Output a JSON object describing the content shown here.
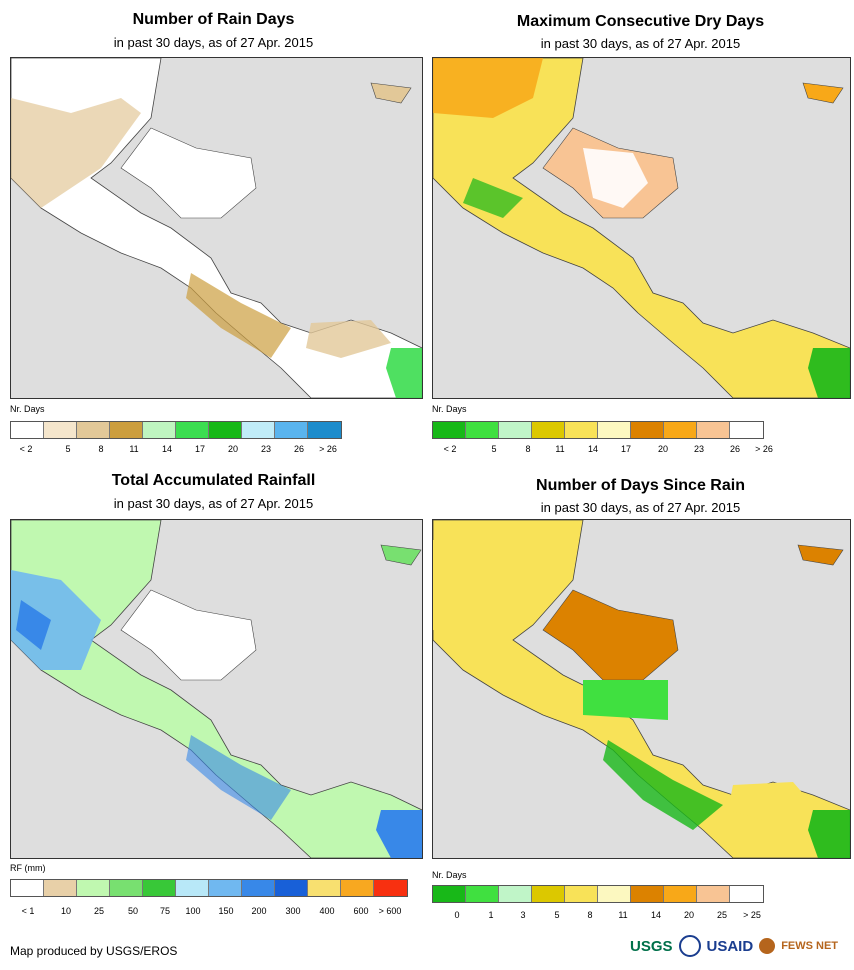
{
  "panels": [
    {
      "title": "Number of Rain Days",
      "subtitle": "in past 30 days, as of 27 Apr. 2015",
      "unit": "Nr. Days",
      "colors": [
        "#ffffff",
        "#f5e6cc",
        "#e2c898",
        "#cc9e3e",
        "#bff5c0",
        "#3cdd50",
        "#18b818",
        "#c0ecf8",
        "#5ab4ee",
        "#1c8ccc"
      ],
      "labels": [
        "< 2",
        "5",
        "8",
        "11",
        "14",
        "17",
        "20",
        "23",
        "26",
        "> 26"
      ]
    },
    {
      "title": "Maximum Consecutive Dry Days",
      "subtitle": "in past 30 days, as of 27 Apr. 2015",
      "unit": "Nr. Days",
      "colors": [
        "#18b818",
        "#40e040",
        "#c0f5c8",
        "#dcc800",
        "#f8e258",
        "#fcf8c0",
        "#dc8200",
        "#f8a818",
        "#f8c494",
        "#ffffff"
      ],
      "labels": [
        "< 2",
        "5",
        "8",
        "11",
        "14",
        "17",
        "20",
        "23",
        "26",
        "> 26"
      ]
    },
    {
      "title": "Total Accumulated Rainfall",
      "subtitle": "in past 30 days, as of 27 Apr. 2015",
      "unit": "RF (mm)",
      "colors": [
        "#ffffff",
        "#e8d0a8",
        "#c0f8b0",
        "#78e070",
        "#38c838",
        "#b8e8f8",
        "#70b8f0",
        "#3888e8",
        "#1860d8",
        "#f8e070",
        "#f8a820",
        "#f83010"
      ],
      "labels": [
        "< 1",
        "10",
        "25",
        "50",
        "75",
        "100",
        "150",
        "200",
        "300",
        "400",
        "600",
        "> 600"
      ]
    },
    {
      "title": "Number of Days Since Rain",
      "subtitle": "in past 30 days, as of 27 Apr. 2015",
      "unit": "Nr. Days",
      "colors": [
        "#18b818",
        "#40e040",
        "#c0f5c8",
        "#dcc800",
        "#f8e258",
        "#fcf8c0",
        "#dc8200",
        "#f8a818",
        "#f8c494",
        "#ffffff"
      ],
      "labels": [
        "0",
        "1",
        "3",
        "5",
        "8",
        "11",
        "14",
        "20",
        "25",
        "> 25"
      ]
    }
  ],
  "credit": "Map produced by USGS/EROS",
  "logos": [
    "USGS",
    "USAID",
    "FEWS NET"
  ]
}
